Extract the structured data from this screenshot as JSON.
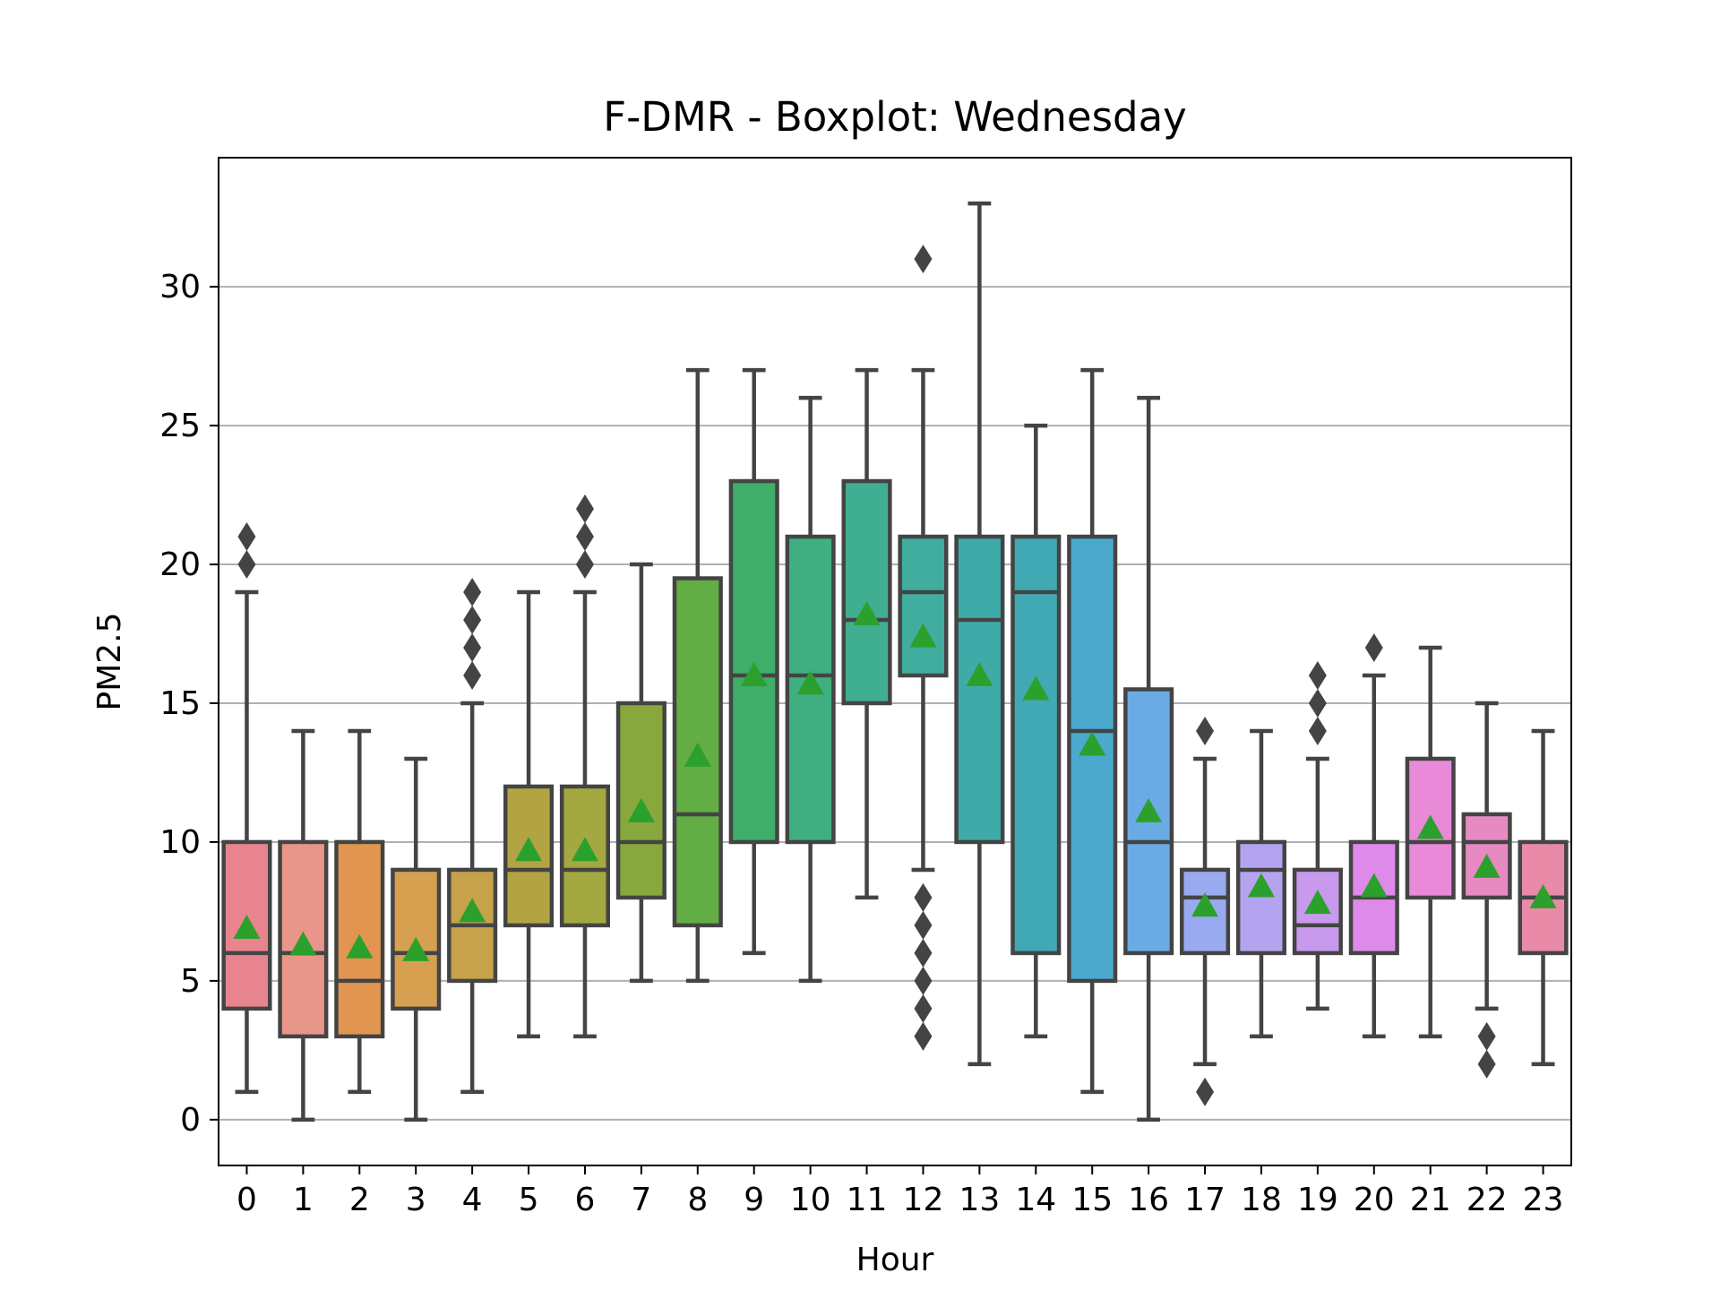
{
  "chart_data": {
    "type": "boxplot",
    "title": "F-DMR - Boxplot: Wednesday",
    "xlabel": "Hour",
    "ylabel": "PM2.5",
    "ylim": [
      -1.65,
      34.65
    ],
    "yticks": [
      0,
      5,
      10,
      15,
      20,
      25,
      30
    ],
    "grid": "y",
    "categories": [
      "0",
      "1",
      "2",
      "3",
      "4",
      "5",
      "6",
      "7",
      "8",
      "9",
      "10",
      "11",
      "12",
      "13",
      "14",
      "15",
      "16",
      "17",
      "18",
      "19",
      "20",
      "21",
      "22",
      "23"
    ],
    "boxes": [
      {
        "hour": "0",
        "whislo": 1,
        "q1": 4,
        "med": 6,
        "q3": 10,
        "whishi": 19,
        "mean": 6.9,
        "fliers": [
          20,
          21
        ],
        "color": "#e8848d"
      },
      {
        "hour": "1",
        "whislo": 0,
        "q1": 3,
        "med": 6,
        "q3": 10,
        "whishi": 14,
        "mean": 6.3,
        "fliers": [],
        "color": "#e8968a"
      },
      {
        "hour": "2",
        "whislo": 1,
        "q1": 3,
        "med": 5,
        "q3": 10,
        "whishi": 14,
        "mean": 6.2,
        "fliers": [],
        "color": "#e29550"
      },
      {
        "hour": "3",
        "whislo": 0,
        "q1": 4,
        "med": 6,
        "q3": 9,
        "whishi": 13,
        "mean": 6.1,
        "fliers": [],
        "color": "#d6a050"
      },
      {
        "hour": "4",
        "whislo": 1,
        "q1": 5,
        "med": 7,
        "q3": 9,
        "whishi": 15,
        "mean": 7.5,
        "fliers": [
          16,
          17,
          18,
          19
        ],
        "color": "#c6a24a"
      },
      {
        "hour": "5",
        "whislo": 3,
        "q1": 7,
        "med": 9,
        "q3": 12,
        "whishi": 19,
        "mean": 9.7,
        "fliers": [],
        "color": "#b3a443"
      },
      {
        "hour": "6",
        "whislo": 3,
        "q1": 7,
        "med": 9,
        "q3": 12,
        "whishi": 19,
        "mean": 9.7,
        "fliers": [
          20,
          21,
          22
        ],
        "color": "#a3a840"
      },
      {
        "hour": "7",
        "whislo": 5,
        "q1": 8,
        "med": 10,
        "q3": 15,
        "whishi": 20,
        "mean": 11.1,
        "fliers": [],
        "color": "#88a83d"
      },
      {
        "hour": "8",
        "whislo": 5,
        "q1": 7,
        "med": 11,
        "q3": 19.5,
        "whishi": 27,
        "mean": 13.1,
        "fliers": [],
        "color": "#62ad44"
      },
      {
        "hour": "9",
        "whislo": 6,
        "q1": 10,
        "med": 16,
        "q3": 23,
        "whishi": 27,
        "mean": 16.0,
        "fliers": [],
        "color": "#3eae68"
      },
      {
        "hour": "10",
        "whislo": 5,
        "q1": 10,
        "med": 16,
        "q3": 21,
        "whishi": 26,
        "mean": 15.7,
        "fliers": [],
        "color": "#3fae80"
      },
      {
        "hour": "11",
        "whislo": 8,
        "q1": 15,
        "med": 18,
        "q3": 23,
        "whishi": 27,
        "mean": 18.2,
        "fliers": [],
        "color": "#40ae90"
      },
      {
        "hour": "12",
        "whislo": 9,
        "q1": 16,
        "med": 19,
        "q3": 21,
        "whishi": 27,
        "mean": 17.4,
        "fliers": [
          3,
          4,
          5,
          6,
          7,
          8,
          31
        ],
        "color": "#40ad9e"
      },
      {
        "hour": "13",
        "whislo": 2,
        "q1": 10,
        "med": 18,
        "q3": 21,
        "whishi": 33,
        "mean": 16.0,
        "fliers": [],
        "color": "#3fab a8"
      },
      {
        "hour": "14",
        "whislo": 3,
        "q1": 6,
        "med": 19,
        "q3": 21,
        "whishi": 25,
        "mean": 15.5,
        "fliers": [],
        "color": "#41a9b3"
      },
      {
        "hour": "15",
        "whislo": 1,
        "q1": 5,
        "med": 14,
        "q3": 21,
        "whishi": 27,
        "mean": 13.5,
        "fliers": [],
        "color": "#4aa9cd"
      },
      {
        "hour": "16",
        "whislo": 0,
        "q1": 6,
        "med": 10,
        "q3": 15.5,
        "whishi": 26,
        "mean": 11.1,
        "fliers": [],
        "color": "#6aabe5"
      },
      {
        "hour": "17",
        "whislo": 2,
        "q1": 6,
        "med": 8,
        "q3": 9,
        "whishi": 13,
        "mean": 7.7,
        "fliers": [
          1,
          14
        ],
        "color": "#9aaaf0"
      },
      {
        "hour": "18",
        "whislo": 3,
        "q1": 6,
        "med": 9,
        "q3": 10,
        "whishi": 14,
        "mean": 8.4,
        "fliers": [],
        "color": "#b4a4f0"
      },
      {
        "hour": "19",
        "whislo": 4,
        "q1": 6,
        "med": 7,
        "q3": 9,
        "whishi": 13,
        "mean": 7.8,
        "fliers": [
          14,
          15,
          16
        ],
        "color": "#c89aee"
      },
      {
        "hour": "20",
        "whislo": 3,
        "q1": 6,
        "med": 8,
        "q3": 10,
        "whishi": 16,
        "mean": 8.4,
        "fliers": [
          17
        ],
        "color": "#de8ae8"
      },
      {
        "hour": "21",
        "whislo": 3,
        "q1": 8,
        "med": 10,
        "q3": 13,
        "whishi": 17,
        "mean": 10.5,
        "fliers": [],
        "color": "#e88ad8"
      },
      {
        "hour": "22",
        "whislo": 4,
        "q1": 8,
        "med": 10,
        "q3": 11,
        "whishi": 15,
        "mean": 9.1,
        "fliers": [
          2,
          3
        ],
        "color": "#e88ac2"
      },
      {
        "hour": "23",
        "whislo": 2,
        "q1": 6,
        "med": 8,
        "q3": 10,
        "whishi": 14,
        "mean": 8.0,
        "fliers": [],
        "color": "#e88aa8"
      }
    ],
    "colors": {
      "line": "#444444",
      "mean_marker": "#2ca02c",
      "grid": "#b0b0b0",
      "axes": "#000000"
    }
  }
}
